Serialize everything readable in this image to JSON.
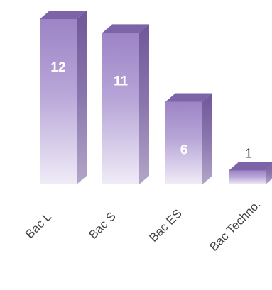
{
  "chart_data": {
    "type": "bar",
    "categories": [
      "Bac L",
      "Bac S",
      "Bac ES",
      "Bac Techno."
    ],
    "values": [
      12,
      11,
      6,
      1
    ],
    "ylim": [
      0,
      12
    ],
    "grid": false,
    "legend": "none"
  },
  "colors": {
    "front_top": "#9d84c6",
    "front_bottom": "#f0ecf7",
    "top_face": "#7d64a8",
    "side_face": "#6f5799"
  }
}
